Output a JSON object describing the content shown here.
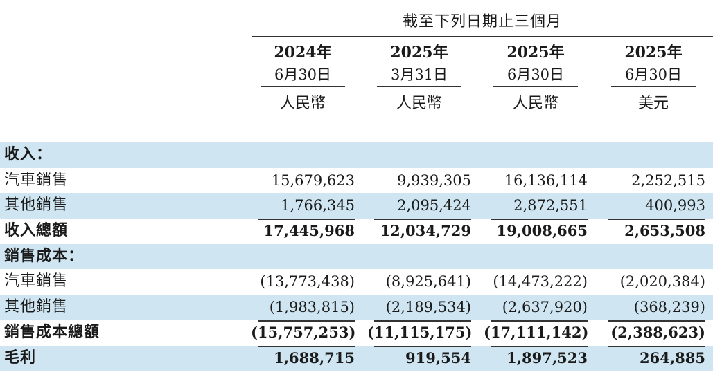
{
  "header": {
    "period": "截至下列日期止三個月",
    "columns": [
      {
        "year": "2024年",
        "date": "6月30日",
        "currency": "人民幣"
      },
      {
        "year": "2025年",
        "date": "3月31日",
        "currency": "人民幣"
      },
      {
        "year": "2025年",
        "date": "6月30日",
        "currency": "人民幣"
      },
      {
        "year": "2025年",
        "date": "6月30日",
        "currency": "美元"
      }
    ]
  },
  "rows": [
    {
      "label": "收入：",
      "values": [
        "",
        "",
        "",
        ""
      ]
    },
    {
      "label": "汽車銷售",
      "values": [
        "15,679,623",
        "9,939,305",
        "16,136,114",
        "2,252,515"
      ]
    },
    {
      "label": "其他銷售",
      "values": [
        "1,766,345",
        "2,095,424",
        "2,872,551",
        "400,993"
      ]
    },
    {
      "label": "收入總額",
      "values": [
        "17,445,968",
        "12,034,729",
        "19,008,665",
        "2,653,508"
      ]
    },
    {
      "label": "銷售成本：",
      "values": [
        "",
        "",
        "",
        ""
      ]
    },
    {
      "label": "汽車銷售",
      "values": [
        "(13,773,438)",
        "(8,925,641)",
        "(14,473,222)",
        "(2,020,384)"
      ]
    },
    {
      "label": "其他銷售",
      "values": [
        "(1,983,815)",
        "(2,189,534)",
        "(2,637,920)",
        "(368,239)"
      ]
    },
    {
      "label": "銷售成本總額",
      "values": [
        "(15,757,253)",
        "(11,115,175)",
        "(17,111,142)",
        "(2,388,623)"
      ]
    },
    {
      "label": "毛利",
      "values": [
        "1,688,715",
        "919,554",
        "1,897,523",
        "264,885"
      ]
    }
  ]
}
